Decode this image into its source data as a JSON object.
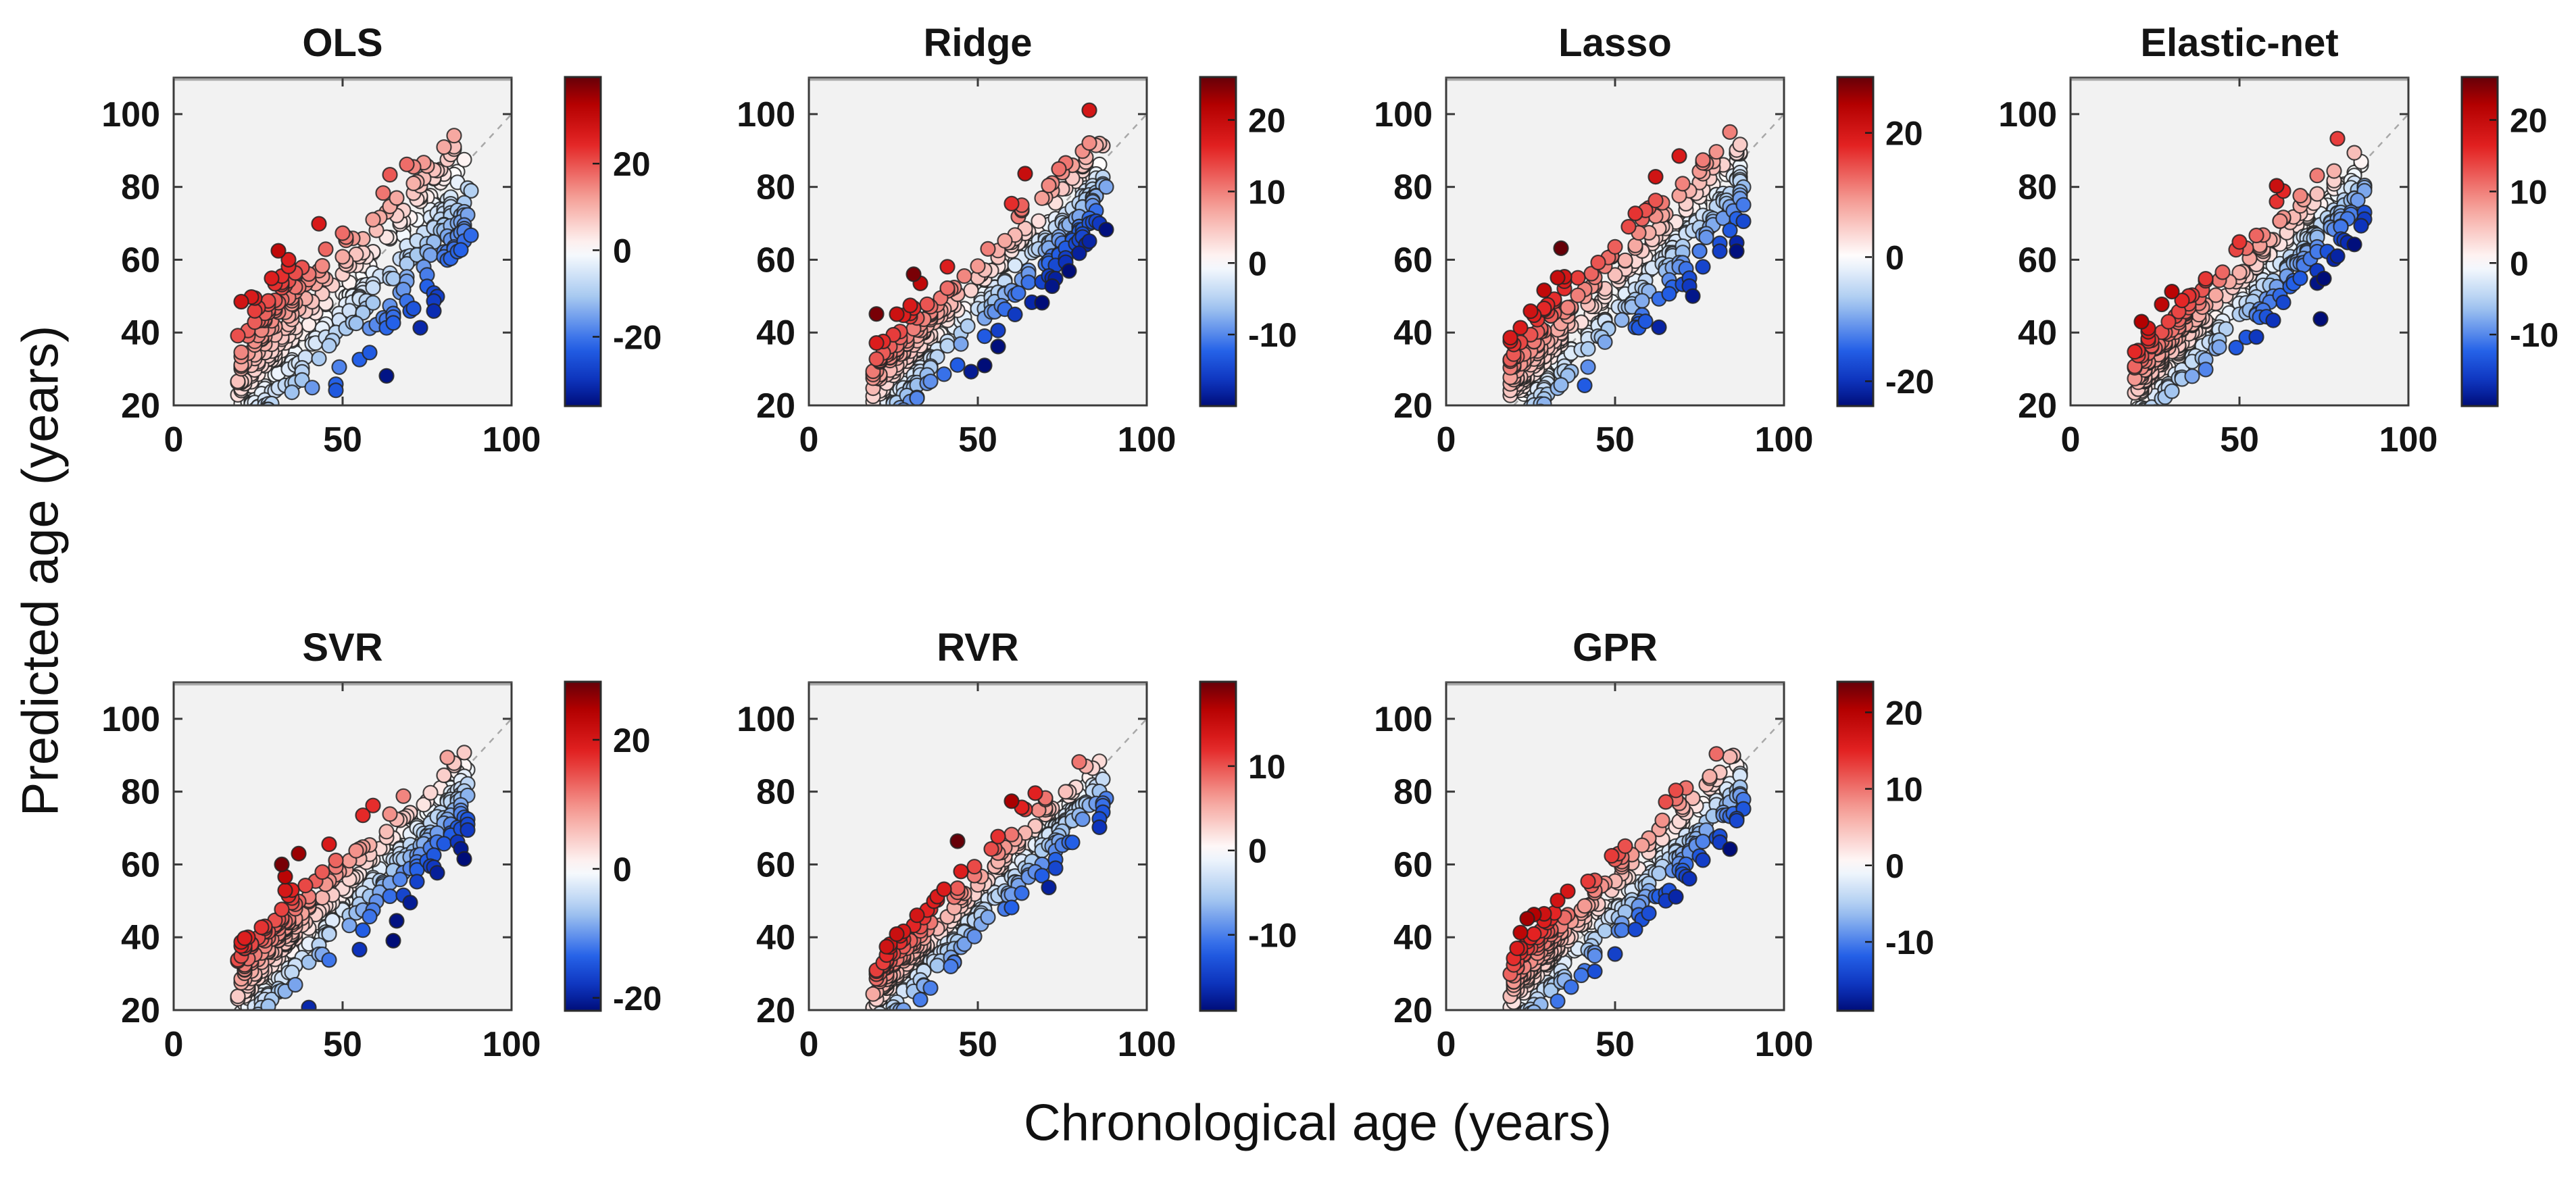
{
  "figure": {
    "xlabel": "Chronological age (years)",
    "ylabel": "Predicted age (years)",
    "xlim": [
      0,
      100
    ],
    "ylim": [
      20,
      110
    ],
    "x_ticks": [
      0,
      50,
      100
    ],
    "y_ticks": [
      20,
      40,
      60,
      80,
      100
    ],
    "colors": {
      "axes_background": "#f2f2f2",
      "axes_box": "#3a3a3a",
      "tick_label": "#141414",
      "identity_line": "#a8a8a8",
      "point_edge": "#242424",
      "colorbar_red_dark": "#660008",
      "colorbar_red": "#e32222",
      "colorbar_white": "#ffffff",
      "colorbar_blue": "#2461e8",
      "colorbar_blue_dark": "#000d78"
    }
  },
  "chart_data": [
    {
      "type": "scatter",
      "title": "OLS",
      "grid_pos": {
        "row": 0,
        "col": 0
      },
      "x_ticks": [
        0,
        50,
        100
      ],
      "y_ticks": [
        20,
        40,
        60,
        80,
        100
      ],
      "xlim": [
        0,
        100
      ],
      "ylim": [
        20,
        110
      ],
      "identity_line": {
        "from": [
          20,
          20
        ],
        "to": [
          100,
          100
        ],
        "style": "dashed"
      },
      "colorbar": {
        "ticks": [
          20,
          0,
          -20
        ],
        "vmin": -36,
        "vmax": 40
      },
      "points_model": {
        "n": 440,
        "x_min": 18,
        "x_max": 88,
        "slope": 0.72,
        "center": 53,
        "residual_sd": 11,
        "seed": 101
      }
    },
    {
      "type": "scatter",
      "title": "Ridge",
      "grid_pos": {
        "row": 0,
        "col": 1
      },
      "x_ticks": [
        0,
        50,
        100
      ],
      "y_ticks": [
        20,
        40,
        60,
        80,
        100
      ],
      "xlim": [
        0,
        100
      ],
      "ylim": [
        20,
        110
      ],
      "identity_line": {
        "from": [
          20,
          20
        ],
        "to": [
          100,
          100
        ],
        "style": "dashed"
      },
      "colorbar": {
        "ticks": [
          20,
          10,
          0,
          -10
        ],
        "vmin": -20,
        "vmax": 26
      },
      "points_model": {
        "n": 440,
        "x_min": 18,
        "x_max": 88,
        "slope": 0.82,
        "center": 53,
        "residual_sd": 7,
        "seed": 202
      }
    },
    {
      "type": "scatter",
      "title": "Lasso",
      "grid_pos": {
        "row": 0,
        "col": 2
      },
      "x_ticks": [
        0,
        50,
        100
      ],
      "y_ticks": [
        20,
        40,
        60,
        80,
        100
      ],
      "xlim": [
        0,
        100
      ],
      "ylim": [
        20,
        110
      ],
      "identity_line": {
        "from": [
          20,
          20
        ],
        "to": [
          100,
          100
        ],
        "style": "dashed"
      },
      "colorbar": {
        "ticks": [
          20,
          0,
          -20
        ],
        "vmin": -24,
        "vmax": 29
      },
      "points_model": {
        "n": 440,
        "x_min": 18,
        "x_max": 88,
        "slope": 0.8,
        "center": 53,
        "residual_sd": 7.5,
        "seed": 303
      }
    },
    {
      "type": "scatter",
      "title": "Elastic-net",
      "grid_pos": {
        "row": 0,
        "col": 3
      },
      "x_ticks": [
        0,
        50,
        100
      ],
      "y_ticks": [
        20,
        40,
        60,
        80,
        100
      ],
      "xlim": [
        0,
        100
      ],
      "ylim": [
        20,
        110
      ],
      "identity_line": {
        "from": [
          20,
          20
        ],
        "to": [
          100,
          100
        ],
        "style": "dashed"
      },
      "colorbar": {
        "ticks": [
          20,
          10,
          0,
          -10
        ],
        "vmin": -20,
        "vmax": 26
      },
      "points_model": {
        "n": 440,
        "x_min": 18,
        "x_max": 88,
        "slope": 0.82,
        "center": 53,
        "residual_sd": 7,
        "seed": 404
      }
    },
    {
      "type": "scatter",
      "title": "SVR",
      "grid_pos": {
        "row": 1,
        "col": 0
      },
      "x_ticks": [
        0,
        50,
        100
      ],
      "y_ticks": [
        20,
        40,
        60,
        80,
        100
      ],
      "xlim": [
        0,
        100
      ],
      "ylim": [
        20,
        110
      ],
      "identity_line": {
        "from": [
          20,
          20
        ],
        "to": [
          100,
          100
        ],
        "style": "dashed"
      },
      "colorbar": {
        "ticks": [
          20,
          0,
          -20
        ],
        "vmin": -22,
        "vmax": 29
      },
      "points_model": {
        "n": 440,
        "x_min": 18,
        "x_max": 88,
        "slope": 0.78,
        "center": 53,
        "residual_sd": 7.5,
        "seed": 505
      }
    },
    {
      "type": "scatter",
      "title": "RVR",
      "grid_pos": {
        "row": 1,
        "col": 1
      },
      "x_ticks": [
        0,
        50,
        100
      ],
      "y_ticks": [
        20,
        40,
        60,
        80,
        100
      ],
      "xlim": [
        0,
        100
      ],
      "ylim": [
        20,
        110
      ],
      "identity_line": {
        "from": [
          20,
          20
        ],
        "to": [
          100,
          100
        ],
        "style": "dashed"
      },
      "colorbar": {
        "ticks": [
          10,
          0,
          -10
        ],
        "vmin": -19,
        "vmax": 20
      },
      "points_model": {
        "n": 440,
        "x_min": 18,
        "x_max": 88,
        "slope": 0.88,
        "center": 53,
        "residual_sd": 5.5,
        "seed": 606
      }
    },
    {
      "type": "scatter",
      "title": "GPR",
      "grid_pos": {
        "row": 1,
        "col": 2
      },
      "x_ticks": [
        0,
        50,
        100
      ],
      "y_ticks": [
        20,
        40,
        60,
        80,
        100
      ],
      "xlim": [
        0,
        100
      ],
      "ylim": [
        20,
        110
      ],
      "identity_line": {
        "from": [
          20,
          20
        ],
        "to": [
          100,
          100
        ],
        "style": "dashed"
      },
      "colorbar": {
        "ticks": [
          20,
          10,
          0,
          -10
        ],
        "vmin": -19,
        "vmax": 24
      },
      "points_model": {
        "n": 440,
        "x_min": 18,
        "x_max": 88,
        "slope": 0.82,
        "center": 53,
        "residual_sd": 6.5,
        "seed": 707
      }
    }
  ]
}
